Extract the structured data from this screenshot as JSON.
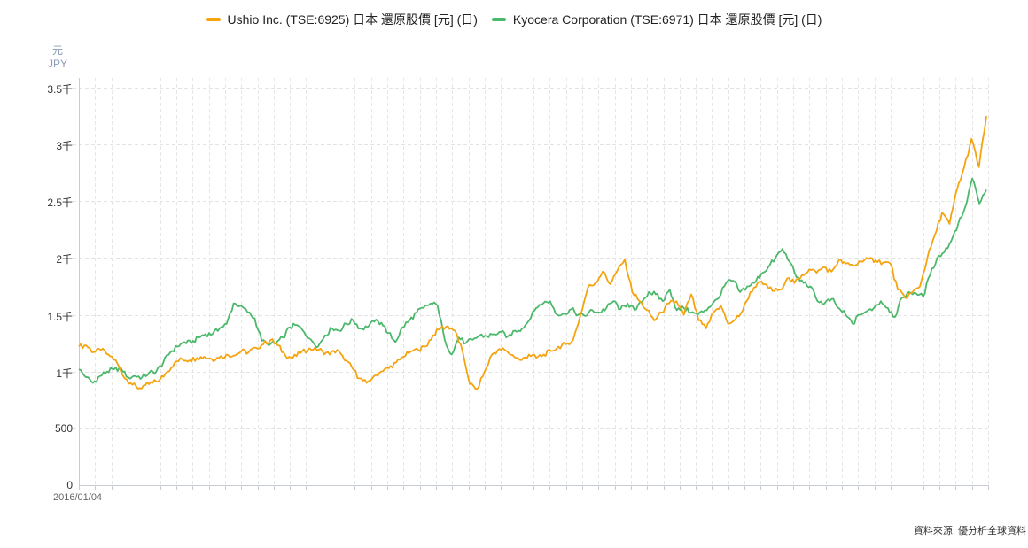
{
  "chart_data": {
    "type": "line",
    "title": "",
    "xlabel": "",
    "ylabel": "元 JPY",
    "ylim": [
      0,
      3500
    ],
    "y_ticks": [
      {
        "value": 0,
        "label": "0"
      },
      {
        "value": 500,
        "label": "500"
      },
      {
        "value": 1000,
        "label": "1千"
      },
      {
        "value": 1500,
        "label": "1.5千"
      },
      {
        "value": 2000,
        "label": "2千"
      },
      {
        "value": 2500,
        "label": "2.5千"
      },
      {
        "value": 3000,
        "label": "3千"
      },
      {
        "value": 3500,
        "label": "3.5千"
      }
    ],
    "x_start_label": "2016/01/04",
    "x_range_approx": [
      "2016/01/04",
      "2025/04"
    ],
    "grid": true,
    "legend_position": "top",
    "series": [
      {
        "name": "Ushio Inc. (TSE:6925) 日本 還原股價 [元] (日)",
        "color": "#f5a30f",
        "values": [
          1220,
          1230,
          1170,
          1190,
          1150,
          1100,
          960,
          900,
          850,
          880,
          900,
          930,
          1000,
          1080,
          1110,
          1100,
          1120,
          1130,
          1110,
          1120,
          1150,
          1140,
          1180,
          1170,
          1210,
          1240,
          1280,
          1230,
          1140,
          1120,
          1160,
          1190,
          1210,
          1180,
          1150,
          1190,
          1100,
          1040,
          940,
          900,
          960,
          1000,
          1030,
          1080,
          1130,
          1180,
          1190,
          1220,
          1320,
          1380,
          1400,
          1360,
          1180,
          890,
          850,
          1000,
          1150,
          1200,
          1180,
          1130,
          1100,
          1150,
          1120,
          1150,
          1180,
          1220,
          1240,
          1280,
          1500,
          1740,
          1780,
          1880,
          1770,
          1890,
          1990,
          1700,
          1620,
          1540,
          1450,
          1520,
          1600,
          1620,
          1500,
          1680,
          1450,
          1380,
          1520,
          1580,
          1420,
          1460,
          1540,
          1700,
          1780,
          1770,
          1710,
          1720,
          1820,
          1780,
          1850,
          1900,
          1870,
          1920,
          1880,
          1980,
          1950,
          1930,
          1970,
          1990,
          1980,
          1960,
          1950,
          1720,
          1650,
          1700,
          1750,
          2000,
          2200,
          2400,
          2300,
          2600,
          2800,
          3050,
          2800,
          3250
        ]
      },
      {
        "name": "Kyocera Corporation (TSE:6971) 日本 還原股價 [元] (日)",
        "color": "#4cb86b",
        "values": [
          1020,
          950,
          900,
          960,
          1000,
          1020,
          1030,
          950,
          960,
          950,
          990,
          1000,
          1080,
          1170,
          1220,
          1260,
          1250,
          1300,
          1330,
          1330,
          1380,
          1420,
          1600,
          1580,
          1520,
          1470,
          1270,
          1230,
          1250,
          1300,
          1390,
          1410,
          1350,
          1280,
          1220,
          1320,
          1380,
          1360,
          1420,
          1450,
          1380,
          1390,
          1440,
          1430,
          1340,
          1260,
          1390,
          1450,
          1520,
          1560,
          1600,
          1580,
          1280,
          1150,
          1300,
          1250,
          1280,
          1320,
          1310,
          1330,
          1350,
          1310,
          1360,
          1380,
          1450,
          1560,
          1600,
          1620,
          1500,
          1510,
          1550,
          1500,
          1490,
          1540,
          1520,
          1560,
          1620,
          1550,
          1600,
          1540,
          1610,
          1700,
          1680,
          1620,
          1720,
          1540,
          1560,
          1520,
          1500,
          1540,
          1590,
          1650,
          1780,
          1800,
          1700,
          1750,
          1780,
          1860,
          1920,
          2000,
          2080,
          1970,
          1830,
          1780,
          1750,
          1620,
          1600,
          1640,
          1560,
          1500,
          1420,
          1500,
          1530,
          1560,
          1620,
          1560,
          1480,
          1650,
          1700,
          1690,
          1660,
          1850,
          2000,
          2050,
          2150,
          2300,
          2450,
          2700,
          2480,
          2600
        ]
      }
    ]
  },
  "legend": {
    "items": [
      {
        "label": "Ushio Inc. (TSE:6925) 日本 還原股價 [元] (日)",
        "color": "#f5a30f"
      },
      {
        "label": "Kyocera Corporation (TSE:6971) 日本 還原股價 [元] (日)",
        "color": "#4cb86b"
      }
    ]
  },
  "axis": {
    "unit_cn": "元",
    "unit_en": "JPY",
    "x_first_label": "2016/01/04"
  },
  "footer": {
    "source": "資料來源: 優分析全球資料"
  }
}
